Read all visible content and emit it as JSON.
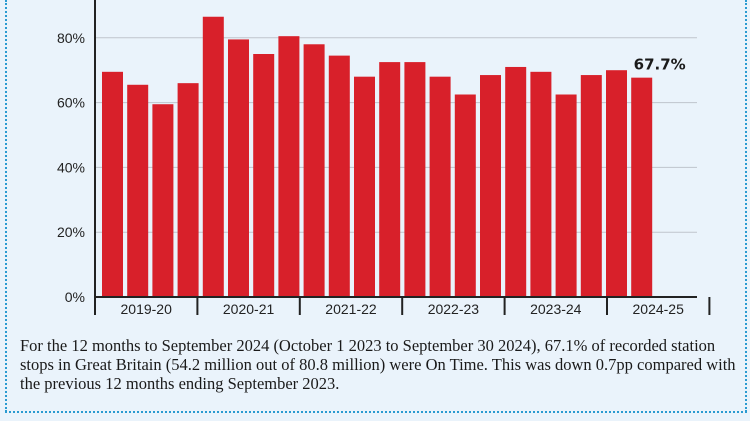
{
  "colors": {
    "bar": "#d8202a",
    "background": "#eaf3fb",
    "border": "#2a9bd1",
    "grid": "#bfc5cc",
    "axis": "#222222"
  },
  "chart_data": {
    "type": "bar",
    "title": "",
    "xlabel": "",
    "ylabel": "",
    "ylim": [
      0,
      90
    ],
    "yticks": [
      0,
      20,
      40,
      60,
      80
    ],
    "ytick_labels": [
      "0%",
      "20%",
      "40%",
      "60%",
      "80%"
    ],
    "groups": [
      {
        "label": "2019-20",
        "values": [
          69.5,
          65.5,
          59.5,
          66.0
        ]
      },
      {
        "label": "2020-21",
        "values": [
          86.5,
          79.5,
          75.0,
          80.5
        ]
      },
      {
        "label": "2021-22",
        "values": [
          78.0,
          74.5,
          68.0,
          72.5
        ]
      },
      {
        "label": "2022-23",
        "values": [
          72.5,
          68.0,
          62.5,
          68.5
        ]
      },
      {
        "label": "2023-24",
        "values": [
          71.0,
          69.5,
          62.5,
          68.5
        ]
      },
      {
        "label": "2024-25",
        "values": [
          70.0,
          67.7
        ]
      }
    ],
    "annotations": [
      {
        "text": "67.7%",
        "group": 5,
        "bar": 1
      }
    ],
    "grid": true
  },
  "caption": "For the 12 months to September 2024 (October 1 2023 to September 30 2024), 67.1% of recorded station stops in Great Britain (54.2 million out of 80.8 million) were On Time. This was down 0.7pp compared with the previous 12 months ending September 2023."
}
